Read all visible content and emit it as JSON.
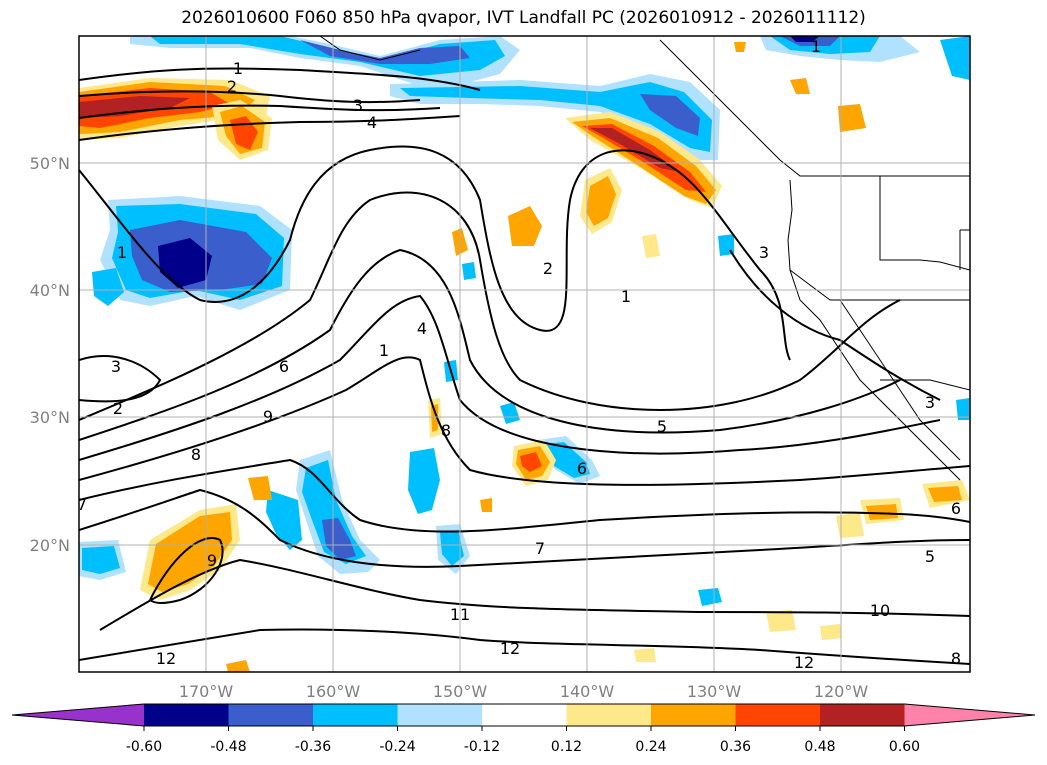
{
  "title": "2026010600 F060 850 hPa qvapor, IVT Landfall PC (2026010912 - 2026011112)",
  "latitude_labels": [
    "50°N",
    "40°N",
    "30°N",
    "20°N"
  ],
  "longitude_labels": [
    "170°W",
    "160°W",
    "150°W",
    "140°W",
    "130°W",
    "120°W"
  ],
  "colorbar": {
    "tick_labels": [
      "-0.60",
      "-0.48",
      "-0.36",
      "-0.24",
      "-0.12",
      "0.12",
      "0.24",
      "0.36",
      "0.48",
      "0.60"
    ],
    "colors": [
      "#9932cc",
      "#00008b",
      "#3a5fcd",
      "#00bfff",
      "#b0e2ff",
      "#ffffff",
      "#fee98a",
      "#ffa500",
      "#ff4500",
      "#b22222",
      "#ff82ab"
    ]
  },
  "contour_labels": [
    "1",
    "2",
    "3",
    "4",
    "1",
    "3",
    "2",
    "1",
    "3",
    "6",
    "9",
    "8",
    "7",
    "5",
    "8",
    "6",
    "7",
    "9",
    "11",
    "12",
    "12",
    "10",
    "12",
    "5",
    "6",
    "8",
    "4",
    "2",
    "1",
    "1",
    "3"
  ],
  "colors": {
    "map_background": "#ffffff",
    "gridline": "#b0b0b0",
    "contour": "#000000"
  }
}
